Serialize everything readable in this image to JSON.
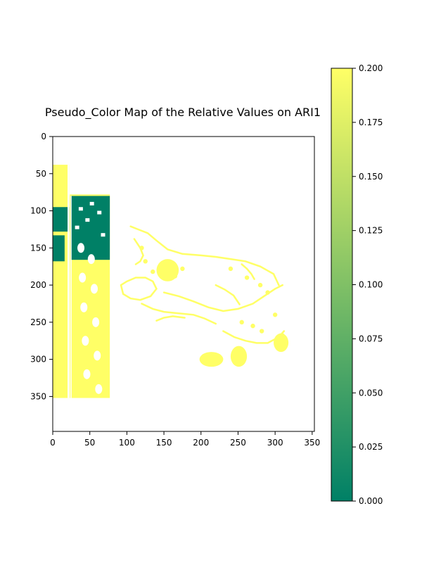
{
  "chart_data": {
    "type": "heatmap",
    "title": "Pseudo_Color Map of the Relative Values on ARI1",
    "xlabel": "",
    "ylabel": "",
    "x_range": [
      0,
      353
    ],
    "y_range": [
      397,
      0
    ],
    "x_ticks": [
      0,
      50,
      100,
      150,
      200,
      250,
      300,
      350
    ],
    "y_ticks": [
      0,
      50,
      100,
      150,
      200,
      250,
      300,
      350
    ],
    "x_tick_labels": [
      "0",
      "50",
      "100",
      "150",
      "200",
      "250",
      "300",
      "350"
    ],
    "y_tick_labels": [
      "0",
      "50",
      "100",
      "150",
      "200",
      "250",
      "300",
      "350"
    ],
    "colormap": [
      "#008066",
      "#ffff66"
    ],
    "colorbar": {
      "range": [
        0,
        0.2
      ],
      "ticks": [
        0,
        0.025,
        0.05,
        0.075,
        0.1,
        0.125,
        0.15,
        0.175,
        0.2
      ],
      "tick_labels": [
        "0.000",
        "0.025",
        "0.050",
        "0.075",
        "0.100",
        "0.125",
        "0.150",
        "0.175",
        "0.200"
      ]
    },
    "regions": [
      {
        "name": "left-yellow-column",
        "x": [
          0,
          22
        ],
        "y": [
          38,
          352
        ],
        "value": 0.2
      },
      {
        "name": "package-yellow-body",
        "x": [
          23,
          77
        ],
        "y": [
          78,
          352
        ],
        "value": 0.2
      },
      {
        "name": "left-green-patch-a",
        "x": [
          0,
          22
        ],
        "y": [
          95,
          128
        ],
        "value": 0.0
      },
      {
        "name": "left-green-patch-b",
        "x": [
          0,
          16
        ],
        "y": [
          133,
          168
        ],
        "value": 0.0
      },
      {
        "name": "package-green-top",
        "x": [
          24,
          77
        ],
        "y": [
          80,
          166
        ],
        "value": 0.0
      },
      {
        "name": "sparse-yellow-figure",
        "x": [
          90,
          320
        ],
        "y": [
          120,
          310
        ],
        "value": 0.2
      },
      {
        "name": "blob-left-lower",
        "x": [
          198,
          230
        ],
        "y": [
          290,
          310
        ],
        "value": 0.2
      },
      {
        "name": "blob-right-lower",
        "x": [
          240,
          262
        ],
        "y": [
          282,
          310
        ],
        "value": 0.2
      },
      {
        "name": "blob-upper-middle",
        "x": [
          140,
          170
        ],
        "y": [
          165,
          195
        ],
        "value": 0.2
      },
      {
        "name": "blob-right-edge",
        "x": [
          298,
          318
        ],
        "y": [
          265,
          290
        ],
        "value": 0.2
      }
    ],
    "grid": false
  }
}
